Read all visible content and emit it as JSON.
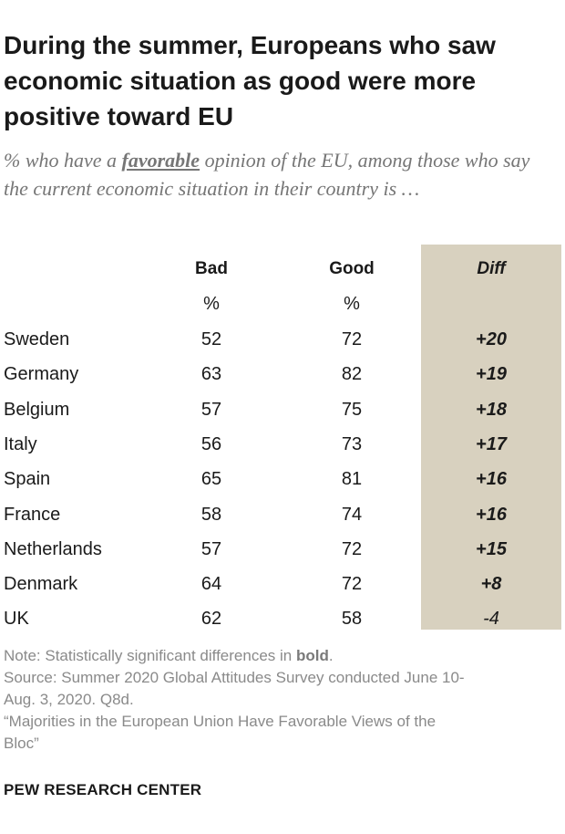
{
  "chart_data": {
    "type": "table",
    "title": "During the summer, Europeans who saw economic situation as good were more positive toward EU",
    "subtitle_parts": [
      "% who have a ",
      "favorable",
      " opinion of the EU, among those who say the current economic situation in their country is …"
    ],
    "columns": [
      "Bad",
      "Good",
      "Diff"
    ],
    "units": [
      "%",
      "%"
    ],
    "rows": [
      {
        "country": "Sweden",
        "bad": 52,
        "good": 72,
        "diff": "+20",
        "significant": true
      },
      {
        "country": "Germany",
        "bad": 63,
        "good": 82,
        "diff": "+19",
        "significant": true
      },
      {
        "country": "Belgium",
        "bad": 57,
        "good": 75,
        "diff": "+18",
        "significant": true
      },
      {
        "country": "Italy",
        "bad": 56,
        "good": 73,
        "diff": "+17",
        "significant": true
      },
      {
        "country": "Spain",
        "bad": 65,
        "good": 81,
        "diff": "+16",
        "significant": true
      },
      {
        "country": "France",
        "bad": 58,
        "good": 74,
        "diff": "+16",
        "significant": true
      },
      {
        "country": "Netherlands",
        "bad": 57,
        "good": 72,
        "diff": "+15",
        "significant": true
      },
      {
        "country": "Denmark",
        "bad": 64,
        "good": 72,
        "diff": "+8",
        "significant": true
      },
      {
        "country": "UK",
        "bad": 62,
        "good": 58,
        "diff": "-4",
        "significant": false
      }
    ],
    "diff_band_color": "#d8d1bf"
  },
  "notes": {
    "note_prefix": "Note: Statistically significant differences in ",
    "note_bold": "bold",
    "note_suffix": ".",
    "source_line1": "Source: Summer 2020 Global Attitudes Survey conducted June 10-",
    "source_line2": "Aug. 3, 2020. Q8d.",
    "report_line1": "“Majorities in the European Union Have Favorable Views of the",
    "report_line2": "Bloc”"
  },
  "brand": "PEW RESEARCH CENTER"
}
